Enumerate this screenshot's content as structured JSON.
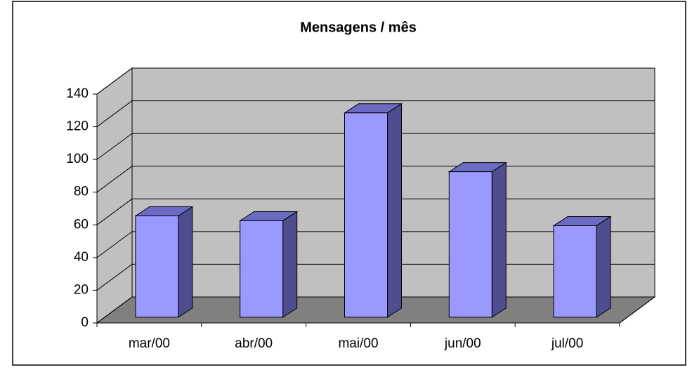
{
  "chart_data": {
    "type": "bar3d",
    "title": "Mensagens / mês",
    "categories": [
      "mar/00",
      "abr/00",
      "mai/00",
      "jun/00",
      "jul/00"
    ],
    "values": [
      62,
      59,
      125,
      89,
      56
    ],
    "color": "#9999ff",
    "side_color": "#4d4d8f",
    "top_color": "#6b6bc4",
    "wall_color": "#c0c0c0",
    "floor_color": "#808080",
    "ylim": [
      0,
      140
    ],
    "yticks": [
      0,
      20,
      40,
      60,
      80,
      100,
      120,
      140
    ],
    "grid": true
  }
}
